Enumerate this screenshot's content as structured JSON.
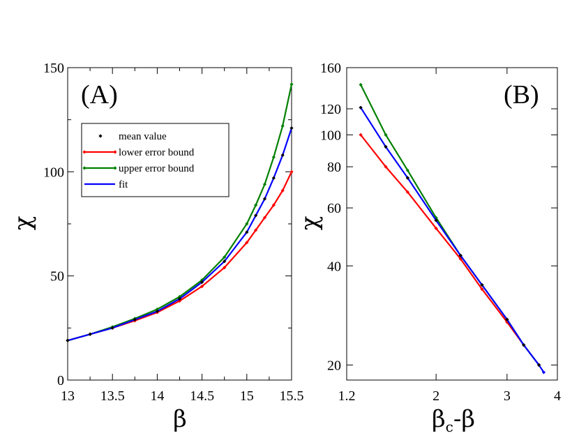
{
  "chart_data": [
    {
      "type": "line",
      "panel_label": "(A)",
      "xlabel": "β",
      "ylabel": "χ",
      "xlim": [
        13,
        15.5
      ],
      "ylim": [
        0,
        150
      ],
      "xscale": "linear",
      "yscale": "linear",
      "xticks": [
        13,
        13.5,
        14,
        14.5,
        15,
        15.5
      ],
      "xtick_labels": [
        "13",
        "13.5",
        "14",
        "14.5",
        "15",
        "15.5"
      ],
      "yticks": [
        0,
        50,
        100,
        150
      ],
      "ytick_labels": [
        "0",
        "50",
        "100",
        "150"
      ],
      "legend_position": "upper-left",
      "series": [
        {
          "name": "mean value",
          "color": "#000000",
          "style": "markers",
          "x": [
            13,
            13.25,
            13.5,
            13.75,
            14,
            14.25,
            14.5,
            14.75,
            15,
            15.1,
            15.2,
            15.3,
            15.4,
            15.5
          ],
          "y": [
            19,
            22,
            25,
            29,
            33,
            39,
            47,
            57,
            71,
            79,
            87,
            97,
            108,
            121
          ]
        },
        {
          "name": "lower error bound",
          "color": "#ff0000",
          "style": "line+markers",
          "x": [
            13,
            13.25,
            13.5,
            13.75,
            14,
            14.25,
            14.5,
            14.75,
            15,
            15.1,
            15.2,
            15.3,
            15.4,
            15.5
          ],
          "y": [
            19,
            22,
            25,
            28.5,
            32.5,
            38,
            45,
            54,
            66,
            72,
            78,
            84,
            91,
            100
          ]
        },
        {
          "name": "upper error bound",
          "color": "#008000",
          "style": "line+markers",
          "x": [
            13,
            13.25,
            13.5,
            13.75,
            14,
            14.25,
            14.5,
            14.75,
            15,
            15.1,
            15.2,
            15.3,
            15.4,
            15.5
          ],
          "y": [
            19,
            22,
            25.5,
            29.5,
            34,
            40,
            48,
            59,
            75,
            84,
            94,
            107,
            122,
            142
          ]
        },
        {
          "name": "fit",
          "color": "#0000ff",
          "style": "line",
          "x": [
            13,
            13.25,
            13.5,
            13.75,
            14,
            14.25,
            14.5,
            14.75,
            15,
            15.1,
            15.2,
            15.3,
            15.4,
            15.5
          ],
          "y": [
            19,
            22,
            25,
            29,
            33,
            39,
            47,
            57,
            71,
            79,
            87,
            97,
            108,
            121
          ]
        }
      ]
    },
    {
      "type": "line",
      "panel_label": "(B)",
      "xlabel_main": "β",
      "xlabel_sub": "c",
      "xlabel_tail": "-β",
      "ylabel": "χ",
      "xlim": [
        1.2,
        4
      ],
      "ylim": [
        18,
        160
      ],
      "xscale": "log",
      "yscale": "log",
      "xticks": [
        1.2,
        2,
        3,
        4
      ],
      "xtick_labels": [
        "1.2",
        "2",
        "3",
        "4"
      ],
      "yticks": [
        20,
        40,
        60,
        80,
        100,
        120,
        160
      ],
      "ytick_labels": [
        "20",
        "40",
        "60",
        "80",
        "100",
        "120",
        "160"
      ],
      "series": [
        {
          "name": "lower error bound",
          "color": "#ff0000",
          "x": [
            1.3,
            1.5,
            1.7,
            2.0,
            2.3,
            2.6,
            3.0,
            3.3,
            3.6
          ],
          "y": [
            100,
            80,
            67,
            52,
            42,
            34,
            27,
            23,
            20
          ]
        },
        {
          "name": "upper error bound",
          "color": "#008000",
          "x": [
            1.3,
            1.5,
            1.7,
            2.0,
            2.3,
            2.6,
            3.0,
            3.3,
            3.6
          ],
          "y": [
            142,
            100,
            78,
            56,
            43,
            35,
            27.5,
            23,
            20
          ]
        },
        {
          "name": "fit",
          "color": "#0000ff",
          "x": [
            1.3,
            1.5,
            1.7,
            2.0,
            2.3,
            2.6,
            3.0,
            3.3,
            3.6,
            3.7
          ],
          "y": [
            121,
            92,
            74,
            55,
            43,
            35,
            27.5,
            23,
            20,
            19
          ]
        },
        {
          "name": "mean value",
          "color": "#000000",
          "style": "markers",
          "x": [
            1.3,
            1.5,
            1.7,
            2.0,
            2.3,
            2.6,
            3.0,
            3.3,
            3.6
          ],
          "y": [
            121,
            92,
            74,
            55,
            43,
            35,
            27.5,
            23,
            20
          ]
        }
      ]
    }
  ]
}
